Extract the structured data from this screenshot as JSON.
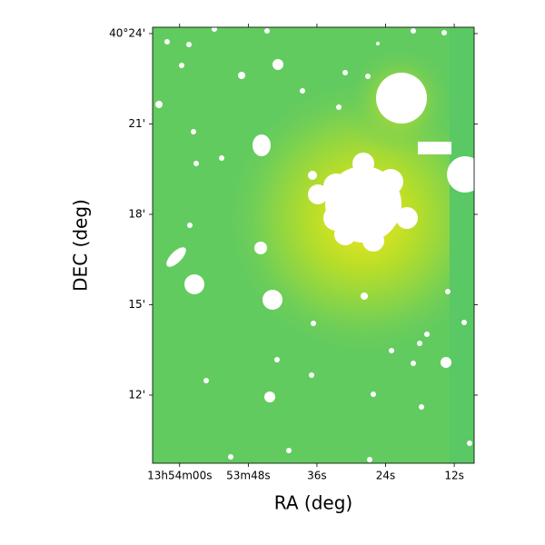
{
  "chart_data": {
    "type": "image",
    "xlabel": "RA (deg)",
    "ylabel": "DEC (deg)",
    "xlim": [
      208.5197,
      208.2855
    ],
    "xticks": [
      {
        "value": 208.5,
        "label": "13h54m00s"
      },
      {
        "value": 208.45,
        "label": "53m48s"
      },
      {
        "value": 208.4,
        "label": "36s"
      },
      {
        "value": 208.35,
        "label": "24s"
      },
      {
        "value": 208.3,
        "label": "12s"
      }
    ],
    "ylim": [
      40.1623,
      40.4035
    ],
    "yticks": [
      {
        "value": 40.2,
        "label": "12'"
      },
      {
        "value": 40.25,
        "label": "15'"
      },
      {
        "value": 40.3,
        "label": "18'"
      },
      {
        "value": 40.35,
        "label": "21'"
      },
      {
        "value": 40.4,
        "label": "40°24'"
      }
    ]
  }
}
